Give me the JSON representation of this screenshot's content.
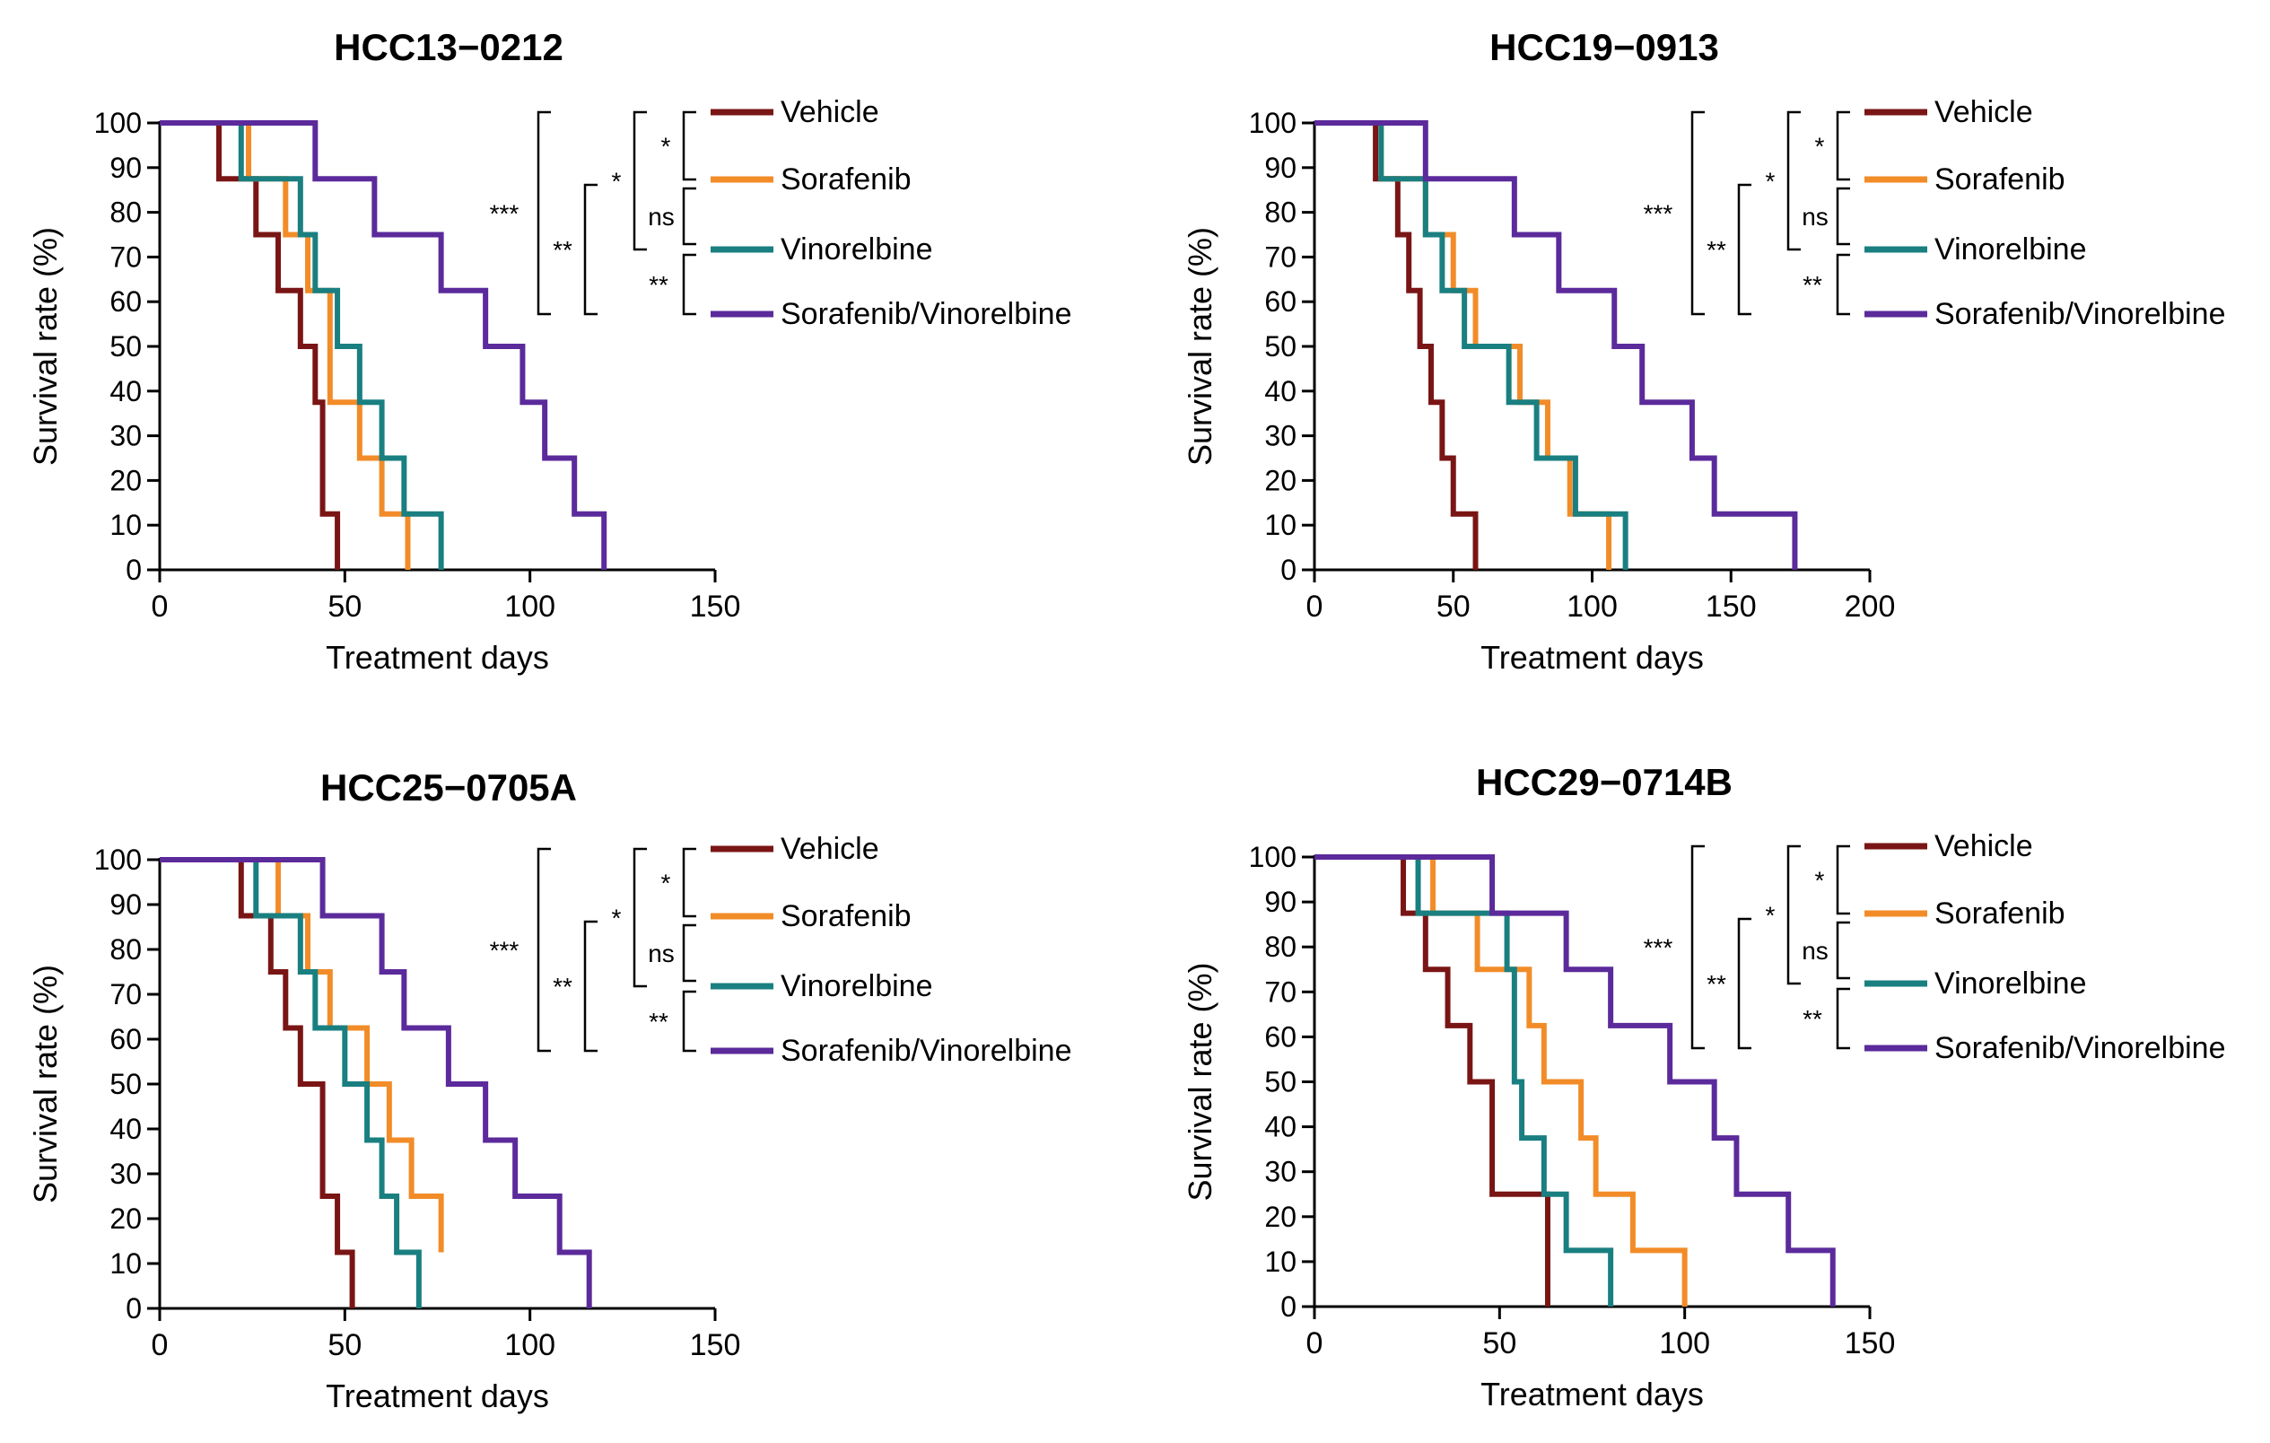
{
  "colors": {
    "Vehicle": "#7a1515",
    "Sorafenib": "#f28c28",
    "Vinorelbine": "#1a7f80",
    "Sorafenib/Vinorelbine": "#5b2a9b",
    "axis": "#000000"
  },
  "chart_data": [
    {
      "type": "line",
      "title": "HCC13−0212",
      "xlabel": "Treatment days",
      "ylabel": "Survival rate (%)",
      "xlim": [
        0,
        150
      ],
      "ylim": [
        0,
        100
      ],
      "xticks": [
        0,
        50,
        100,
        150
      ],
      "yticks": [
        0,
        10,
        20,
        30,
        40,
        50,
        60,
        70,
        80,
        90,
        100
      ],
      "legend": [
        "Vehicle",
        "Sorafenib",
        "Vinorelbine",
        "Sorafenib/Vinorelbine"
      ],
      "significance": {
        "vehicle_vs_sorafenib": "*",
        "sorafenib_vs_vinorelbine": "ns",
        "vinorelbine_vs_combo": "**",
        "vehicle_vs_vinorelbine": "*",
        "sorafenib_vs_combo": "**",
        "vehicle_vs_combo": "***"
      },
      "series": [
        {
          "name": "Vehicle",
          "x": [
            0,
            16,
            26,
            32,
            38,
            42,
            44,
            48
          ],
          "y": [
            100,
            87.5,
            75,
            62.5,
            50,
            37.5,
            12.5,
            0
          ]
        },
        {
          "name": "Sorafenib",
          "x": [
            0,
            24,
            34,
            40,
            46,
            54,
            60,
            67
          ],
          "y": [
            100,
            87.5,
            75,
            62.5,
            37.5,
            25,
            12.5,
            0
          ]
        },
        {
          "name": "Vinorelbine",
          "x": [
            0,
            22,
            38,
            42,
            48,
            54,
            60,
            66,
            76
          ],
          "y": [
            100,
            87.5,
            75,
            62.5,
            50,
            37.5,
            25,
            12.5,
            0
          ]
        },
        {
          "name": "Sorafenib/Vinorelbine",
          "x": [
            0,
            42,
            58,
            76,
            88,
            98,
            104,
            112,
            120
          ],
          "y": [
            100,
            87.5,
            75,
            62.5,
            50,
            37.5,
            25,
            12.5,
            0
          ]
        }
      ]
    },
    {
      "type": "line",
      "title": "HCC19−0913",
      "xlabel": "Treatment days",
      "ylabel": "Survival rate (%)",
      "xlim": [
        0,
        200
      ],
      "ylim": [
        0,
        100
      ],
      "xticks": [
        0,
        50,
        100,
        150,
        200
      ],
      "yticks": [
        0,
        10,
        20,
        30,
        40,
        50,
        60,
        70,
        80,
        90,
        100
      ],
      "legend": [
        "Vehicle",
        "Sorafenib",
        "Vinorelbine",
        "Sorafenib/Vinorelbine"
      ],
      "significance": {
        "vehicle_vs_sorafenib": "*",
        "sorafenib_vs_vinorelbine": "ns",
        "vinorelbine_vs_combo": "**",
        "vehicle_vs_vinorelbine": "*",
        "sorafenib_vs_combo": "**",
        "vehicle_vs_combo": "***"
      },
      "series": [
        {
          "name": "Vehicle",
          "x": [
            0,
            22,
            30,
            34,
            38,
            42,
            46,
            50,
            54,
            58
          ],
          "y": [
            100,
            87.5,
            75,
            62.5,
            50,
            37.5,
            25,
            12.5,
            12.5,
            0
          ]
        },
        {
          "name": "Sorafenib",
          "x": [
            0,
            24,
            40,
            50,
            58,
            74,
            84,
            92,
            106
          ],
          "y": [
            100,
            87.5,
            75,
            62.5,
            50,
            37.5,
            25,
            12.5,
            0
          ]
        },
        {
          "name": "Vinorelbine",
          "x": [
            0,
            24,
            40,
            46,
            54,
            70,
            80,
            94,
            112
          ],
          "y": [
            100,
            87.5,
            75,
            62.5,
            50,
            37.5,
            25,
            12.5,
            0
          ]
        },
        {
          "name": "Sorafenib/Vinorelbine",
          "x": [
            0,
            40,
            72,
            88,
            108,
            118,
            136,
            144,
            173
          ],
          "y": [
            100,
            87.5,
            75,
            62.5,
            50,
            37.5,
            25,
            12.5,
            0
          ]
        }
      ]
    },
    {
      "type": "line",
      "title": "HCC25−0705A",
      "xlabel": "Treatment days",
      "ylabel": "Survival rate (%)",
      "xlim": [
        0,
        150
      ],
      "ylim": [
        0,
        100
      ],
      "xticks": [
        0,
        50,
        100,
        150
      ],
      "yticks": [
        0,
        10,
        20,
        30,
        40,
        50,
        60,
        70,
        80,
        90,
        100
      ],
      "legend": [
        "Vehicle",
        "Sorafenib",
        "Vinorelbine",
        "Sorafenib/Vinorelbine"
      ],
      "significance": {
        "vehicle_vs_sorafenib": "*",
        "sorafenib_vs_vinorelbine": "ns",
        "vinorelbine_vs_combo": "**",
        "vehicle_vs_vinorelbine": "*",
        "sorafenib_vs_combo": "**",
        "vehicle_vs_combo": "***"
      },
      "series": [
        {
          "name": "Vehicle",
          "x": [
            0,
            22,
            30,
            34,
            38,
            44,
            48,
            52
          ],
          "y": [
            100,
            87.5,
            75,
            62.5,
            50,
            25,
            12.5,
            0
          ]
        },
        {
          "name": "Sorafenib",
          "x": [
            0,
            32,
            40,
            46,
            56,
            62,
            68,
            76
          ],
          "y": [
            100,
            87.5,
            75,
            62.5,
            50,
            37.5,
            25,
            12.5
          ]
        },
        {
          "name": "Vinorelbine",
          "x": [
            0,
            26,
            38,
            42,
            50,
            56,
            60,
            64,
            70
          ],
          "y": [
            100,
            87.5,
            75,
            62.5,
            50,
            37.5,
            25,
            12.5,
            0
          ]
        },
        {
          "name": "Sorafenib/Vinorelbine",
          "x": [
            0,
            44,
            60,
            66,
            78,
            88,
            96,
            108,
            116
          ],
          "y": [
            100,
            87.5,
            75,
            62.5,
            50,
            37.5,
            25,
            12.5,
            0
          ]
        }
      ]
    },
    {
      "type": "line",
      "title": "HCC29−0714B",
      "xlabel": "Treatment days",
      "ylabel": "Survival rate (%)",
      "xlim": [
        0,
        150
      ],
      "ylim": [
        0,
        100
      ],
      "xticks": [
        0,
        50,
        100,
        150
      ],
      "yticks": [
        0,
        10,
        20,
        30,
        40,
        50,
        60,
        70,
        80,
        90,
        100
      ],
      "legend": [
        "Vehicle",
        "Sorafenib",
        "Vinorelbine",
        "Sorafenib/Vinorelbine"
      ],
      "significance": {
        "vehicle_vs_sorafenib": "*",
        "sorafenib_vs_vinorelbine": "ns",
        "vinorelbine_vs_combo": "**",
        "vehicle_vs_vinorelbine": "*",
        "sorafenib_vs_combo": "**",
        "vehicle_vs_combo": "***"
      },
      "series": [
        {
          "name": "Vehicle",
          "x": [
            0,
            24,
            30,
            36,
            42,
            48,
            56,
            63
          ],
          "y": [
            100,
            87.5,
            75,
            62.5,
            50,
            25,
            25,
            0
          ]
        },
        {
          "name": "Sorafenib",
          "x": [
            0,
            32,
            44,
            58,
            62,
            72,
            76,
            86,
            100
          ],
          "y": [
            100,
            87.5,
            75,
            62.5,
            50,
            37.5,
            25,
            12.5,
            0
          ]
        },
        {
          "name": "Vinorelbine",
          "x": [
            0,
            28,
            52,
            54,
            56,
            62,
            68,
            80
          ],
          "y": [
            100,
            87.5,
            75,
            50,
            37.5,
            25,
            12.5,
            0
          ]
        },
        {
          "name": "Sorafenib/Vinorelbine",
          "x": [
            0,
            48,
            68,
            80,
            96,
            108,
            114,
            128,
            140
          ],
          "y": [
            100,
            87.5,
            75,
            62.5,
            50,
            37.5,
            25,
            12.5,
            0
          ]
        }
      ]
    }
  ]
}
